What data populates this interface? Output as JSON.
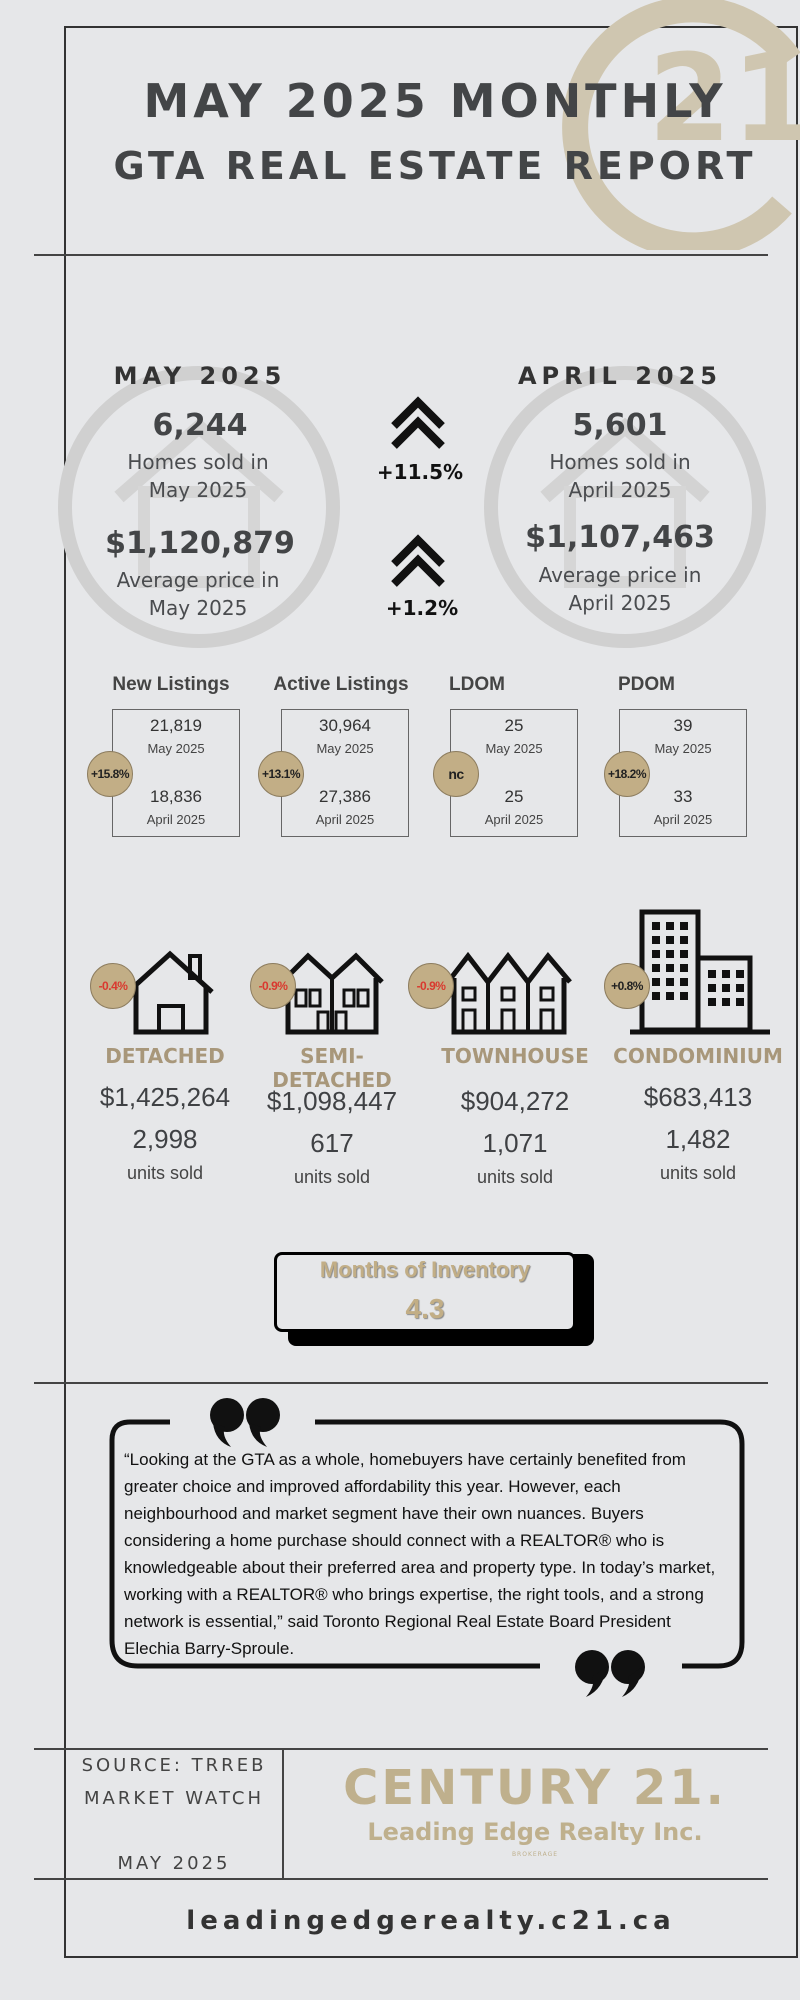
{
  "header": {
    "title_line1": "MAY 2025 MONTHLY",
    "title_line2": "GTA REAL ESTATE REPORT"
  },
  "comparison": {
    "current": {
      "period": "MAY 2025",
      "homes_sold": "6,244",
      "homes_sold_label": "Homes sold in May 2025",
      "avg_price": "$1,120,879",
      "avg_price_label": "Average price in May 2025"
    },
    "previous": {
      "period": "APRIL 2025",
      "homes_sold": "5,601",
      "homes_sold_label": "Homes sold in April 2025",
      "avg_price": "$1,107,463",
      "avg_price_label": "Average price in April 2025"
    },
    "sales_change": "+11.5%",
    "price_change": "+1.2%"
  },
  "metrics": [
    {
      "label": "New Listings",
      "current": "21,819",
      "current_period": "May 2025",
      "previous": "18,836",
      "previous_period": "April 2025",
      "change": "+15.8%"
    },
    {
      "label": "Active Listings",
      "current": "30,964",
      "current_period": "May 2025",
      "previous": "27,386",
      "previous_period": "April 2025",
      "change": "+13.1%"
    },
    {
      "label": "LDOM",
      "current": "25",
      "current_period": "May 2025",
      "previous": "25",
      "previous_period": "April 2025",
      "change": "nc"
    },
    {
      "label": "PDOM",
      "current": "39",
      "current_period": "May 2025",
      "previous": "33",
      "previous_period": "April 2025",
      "change": "+18.2%"
    }
  ],
  "property_types": [
    {
      "type": "DETACHED",
      "price": "$1,425,264",
      "units": "2,998",
      "units_label": "units sold",
      "change": "-0.4%"
    },
    {
      "type": "SEMI-DETACHED",
      "price": "$1,098,447",
      "units": "617",
      "units_label": "units sold",
      "change": "-0.9%"
    },
    {
      "type": "TOWNHOUSE",
      "price": "$904,272",
      "units": "1,071",
      "units_label": "units sold",
      "change": "-0.9%"
    },
    {
      "type": "CONDOMINIUM",
      "price": "$683,413",
      "units": "1,482",
      "units_label": "units sold",
      "change": "+0.8%"
    }
  ],
  "inventory": {
    "label": "Months of Inventory",
    "value": "4.3"
  },
  "quote": {
    "text": "“Looking at the GTA as a whole, homebuyers have certainly benefited from greater choice and improved affordability this year. However, each neighbourhood and market segment have their own nuances. Buyers considering a home purchase should connect with a REALTOR® who is knowledgeable about their preferred area and property type. In today’s market, working with a REALTOR® who brings expertise, the right tools, and a strong network is essential,” said Toronto Regional Real Estate Board President Elechia Barry-Sproule."
  },
  "footer": {
    "source_line1": "SOURCE: TRREB",
    "source_line2": "MARKET WATCH",
    "source_date": "MAY 2025",
    "brand_name": "CENTURY 21.",
    "brand_office": "Leading Edge Realty Inc.",
    "brand_note": "BROKERAGE",
    "url": "leadingedgerealty.c21.ca"
  },
  "colors": {
    "accent_gold": "#c2ae86",
    "negative_red": "#d9392f",
    "background": "#e6e7e9"
  }
}
